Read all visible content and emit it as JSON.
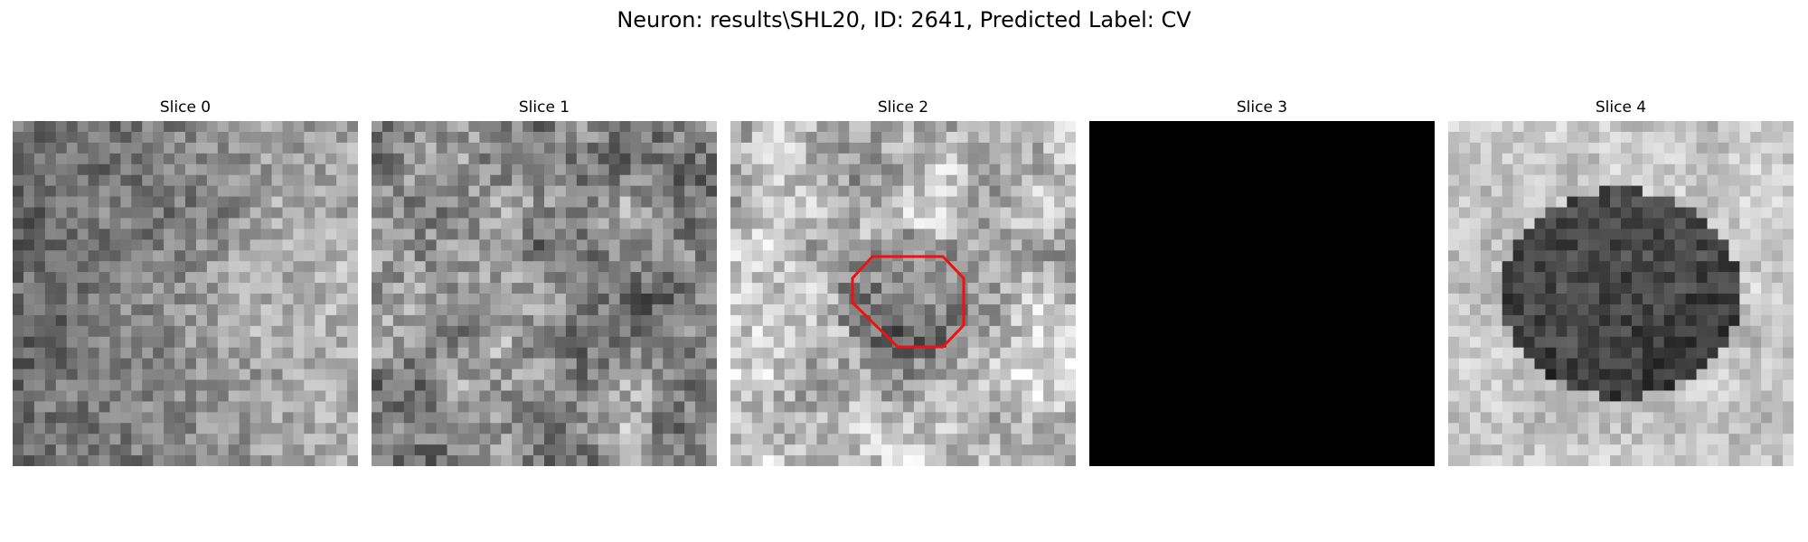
{
  "figure": {
    "title": "Neuron: results\\SHL20, ID: 2641, Predicted Label: CV"
  },
  "colors": {
    "contour": "#ee1111",
    "background": "#ffffff"
  },
  "panels": [
    {
      "label": "Slice 0",
      "pattern": "noisy-gray-bright-right"
    },
    {
      "label": "Slice 1",
      "pattern": "noisy-gray-mottled"
    },
    {
      "label": "Slice 2",
      "pattern": "noisy-gray-dark-center",
      "contour": true
    },
    {
      "label": "Slice 3",
      "pattern": "black"
    },
    {
      "label": "Slice 4",
      "pattern": "dark-blob-center"
    }
  ]
}
